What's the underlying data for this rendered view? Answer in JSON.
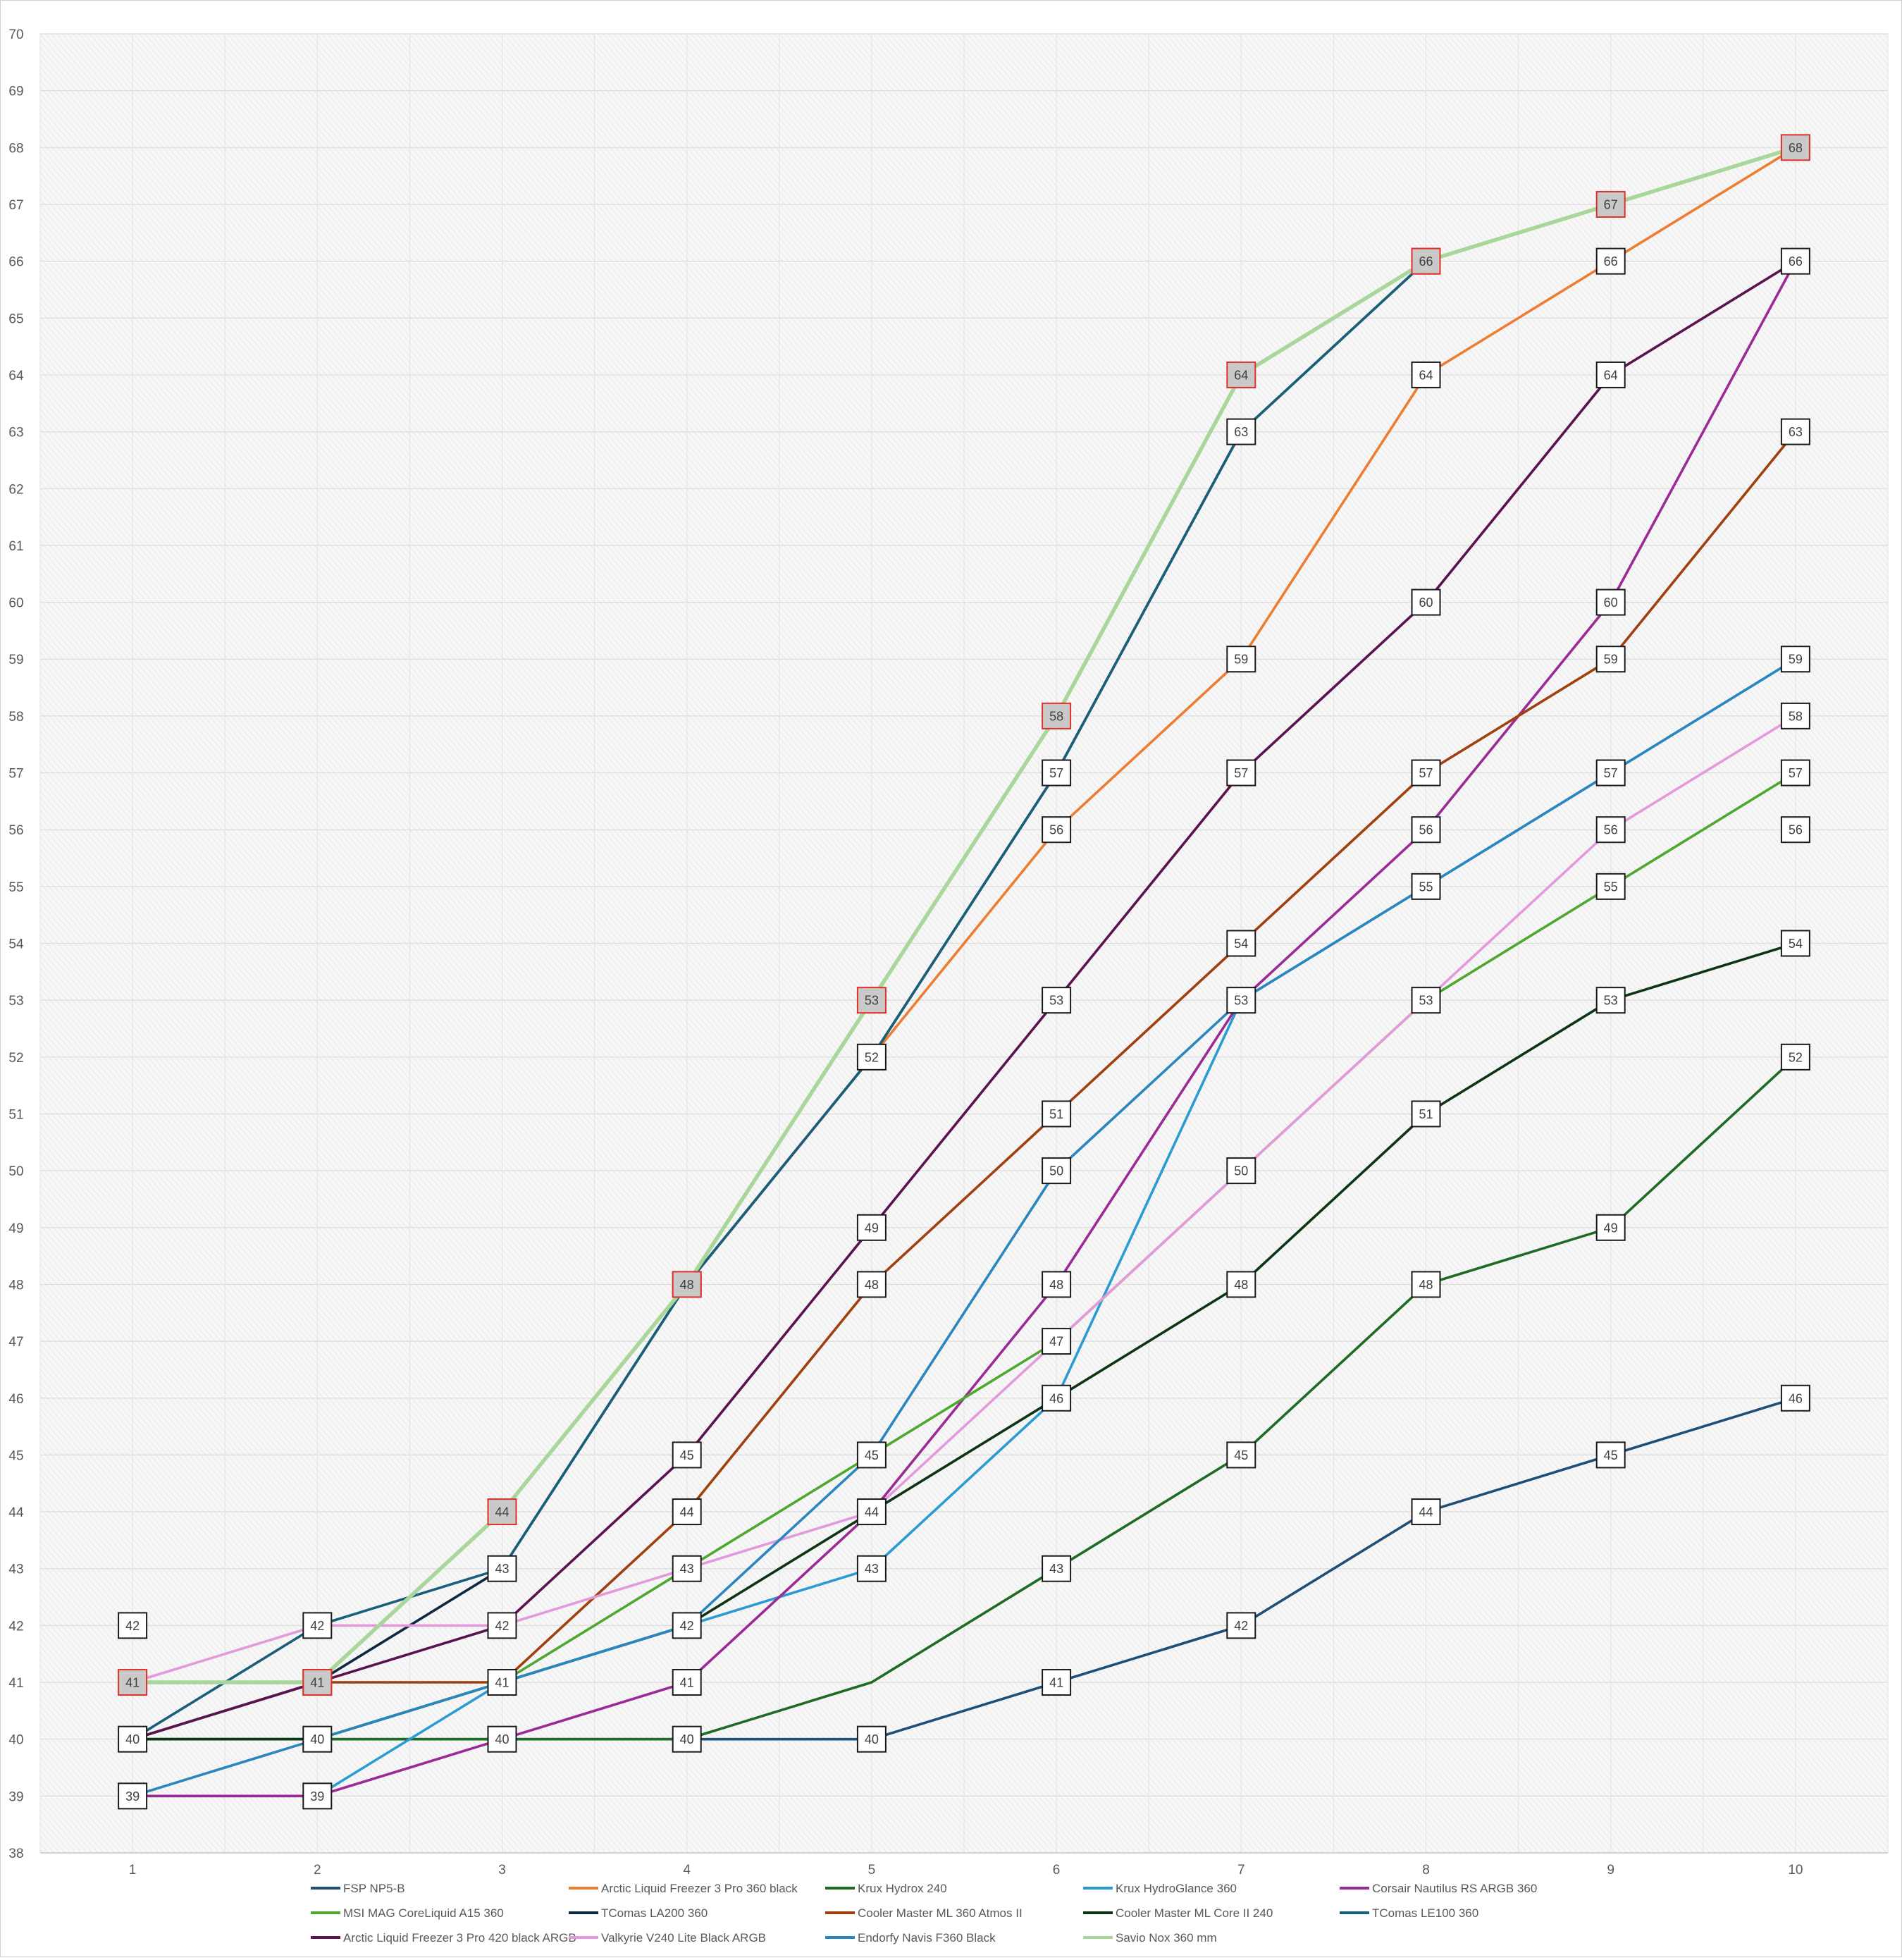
{
  "chart_data": {
    "type": "line",
    "title": "",
    "xlabel": "",
    "ylabel": "",
    "x": [
      1,
      2,
      3,
      4,
      5,
      6,
      7,
      8,
      9,
      10
    ],
    "ylim": [
      38,
      70
    ],
    "xlim": [
      0.5,
      10.5
    ],
    "grid": true,
    "legend_position": "bottom",
    "series": [
      {
        "name": "FSP NP5-B",
        "color": "#1f4e79",
        "values": [
          40,
          40,
          40,
          40,
          40,
          41,
          42,
          44,
          45,
          46
        ]
      },
      {
        "name": "Arctic Liquid Freezer 3 Pro 360 black",
        "color": "#ed7d31",
        "values": [
          41,
          41,
          44,
          48,
          52,
          56,
          59,
          64,
          66,
          68
        ]
      },
      {
        "name": "Krux Hydrox 240",
        "color": "#1e6b24",
        "values": [
          40,
          40,
          40,
          40,
          41,
          43,
          45,
          48,
          49,
          52
        ]
      },
      {
        "name": "Krux HydroGlance 360",
        "color": "#2b9bd3",
        "values": [
          39,
          39,
          41,
          42,
          43,
          46,
          53,
          55,
          57,
          59
        ]
      },
      {
        "name": "Corsair  Nautilus RS ARGB 360",
        "color": "#9c2a96",
        "values": [
          39,
          39,
          40,
          41,
          44,
          48,
          53,
          56,
          60,
          66
        ]
      },
      {
        "name": "MSI MAG CoreLiquid A15 360",
        "color": "#4ea72e",
        "values": [
          40,
          40,
          41,
          43,
          45,
          47,
          50,
          53,
          55,
          57
        ]
      },
      {
        "name": "TComas LA200 360",
        "color": "#0e2841",
        "values": [
          40,
          41,
          43,
          48,
          52,
          57,
          63,
          66,
          67,
          68
        ]
      },
      {
        "name": "Cooler Master ML 360 Atmos II",
        "color": "#a0400f",
        "values": [
          40,
          41,
          41,
          44,
          48,
          51,
          54,
          57,
          59,
          63
        ]
      },
      {
        "name": "Cooler Master ML Core II 240",
        "color": "#0d3513",
        "values": [
          40,
          40,
          41,
          42,
          44,
          46,
          48,
          51,
          53,
          54
        ]
      },
      {
        "name": "TComas LE100 360",
        "color": "#1a5f7a",
        "values": [
          40,
          42,
          43,
          48,
          52,
          57,
          63,
          66,
          67,
          68
        ]
      },
      {
        "name": "Arctic Liquid Freezer 3 Pro 420 black ARGB",
        "color": "#5b1250",
        "values": [
          40,
          41,
          42,
          45,
          49,
          53,
          57,
          60,
          64,
          66
        ]
      },
      {
        "name": "Valkyrie V240 Lite Black ARGB",
        "color": "#e599dd",
        "values": [
          41,
          42,
          42,
          43,
          44,
          47,
          50,
          53,
          56,
          58
        ]
      },
      {
        "name": "Endorfy Navis F360 Black",
        "color": "#2a86bf",
        "values": [
          39,
          40,
          41,
          42,
          45,
          50,
          53,
          55,
          57,
          59
        ]
      },
      {
        "name": "Savio Nox 360 mm",
        "color": "#a9d79b",
        "values": [
          41,
          41,
          44,
          48,
          53,
          58,
          64,
          66,
          67,
          68
        ]
      }
    ],
    "data_labels": [
      [
        41,
        41,
        44,
        48,
        53,
        58,
        64,
        66,
        67,
        68
      ],
      [
        42,
        42,
        43,
        48,
        52,
        57,
        63,
        66,
        66,
        66
      ],
      [
        40,
        41,
        42,
        45,
        49,
        56,
        59,
        64,
        64,
        63
      ],
      [
        39,
        40,
        41,
        44,
        48,
        53,
        57,
        60,
        60,
        59
      ],
      [
        null,
        39,
        40,
        43,
        45,
        51,
        54,
        57,
        59,
        58
      ],
      [
        null,
        null,
        null,
        42,
        44,
        50,
        53,
        56,
        57,
        57
      ],
      [
        null,
        null,
        null,
        41,
        43,
        48,
        50,
        55,
        56,
        56
      ],
      [
        null,
        null,
        null,
        40,
        40,
        47,
        48,
        53,
        55,
        54
      ],
      [
        null,
        null,
        null,
        null,
        null,
        46,
        45,
        51,
        53,
        52
      ],
      [
        null,
        null,
        null,
        null,
        null,
        43,
        42,
        48,
        49,
        46
      ],
      [
        null,
        null,
        null,
        null,
        null,
        41,
        null,
        44,
        45,
        null
      ]
    ],
    "max_marked": [
      41,
      41,
      44,
      48,
      53,
      58,
      64,
      66,
      67,
      68
    ]
  }
}
